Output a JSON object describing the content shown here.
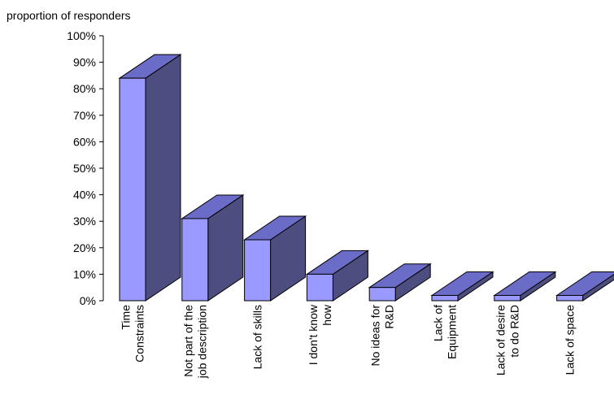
{
  "chart_data": {
    "type": "bar",
    "style": "3d-column",
    "ylabel": "proportion of responders",
    "xlabel": "",
    "title": "",
    "ylim": [
      0,
      100
    ],
    "y_ticks": [
      "0%",
      "10%",
      "20%",
      "30%",
      "40%",
      "50%",
      "60%",
      "70%",
      "80%",
      "90%",
      "100%"
    ],
    "categories": [
      [
        "Time",
        "Constraints"
      ],
      [
        "Not part of the",
        "job description"
      ],
      [
        "Lack of skills"
      ],
      [
        "I don't know",
        "how"
      ],
      [
        "No ideas for",
        "R&D"
      ],
      [
        "Lack of",
        "Equipment"
      ],
      [
        "Lack of desire",
        "to do R&D"
      ],
      [
        "Lack of space"
      ]
    ],
    "values": [
      84,
      31,
      23,
      10,
      5,
      2,
      2,
      2
    ],
    "unit": "%",
    "grid": false,
    "legend": "none",
    "colors": {
      "front": "#9999ff",
      "side": "#4d4d80",
      "top": "#6b6bc8",
      "edge": "#000000"
    }
  }
}
